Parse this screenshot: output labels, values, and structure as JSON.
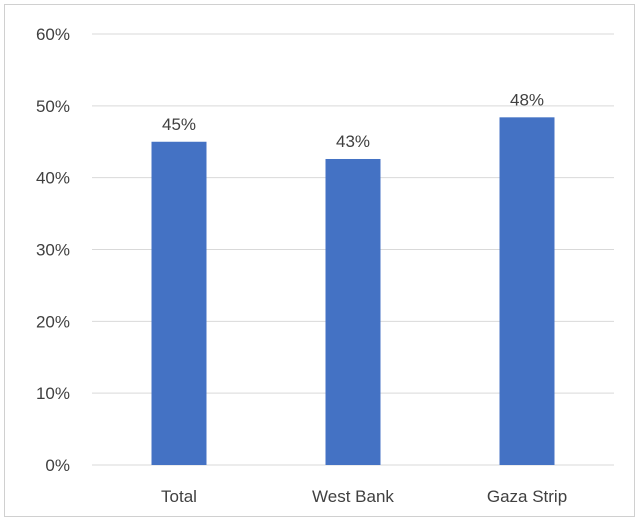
{
  "chart_data": {
    "type": "bar",
    "categories": [
      "Total",
      "West Bank",
      "Gaza Strip"
    ],
    "values": [
      45,
      42.6,
      48.4
    ],
    "data_labels": [
      "45%",
      "43%",
      "48%"
    ],
    "title": "",
    "xlabel": "",
    "ylabel": "",
    "ylim": [
      0,
      60
    ],
    "yticks": [
      0,
      10,
      20,
      30,
      40,
      50,
      60
    ],
    "ytick_labels": [
      "0%",
      "10%",
      "20%",
      "30%",
      "40%",
      "50%",
      "60%"
    ],
    "grid": true,
    "legend": "none",
    "bar_color": "#4472c4",
    "grid_color": "#d9d9d9"
  }
}
